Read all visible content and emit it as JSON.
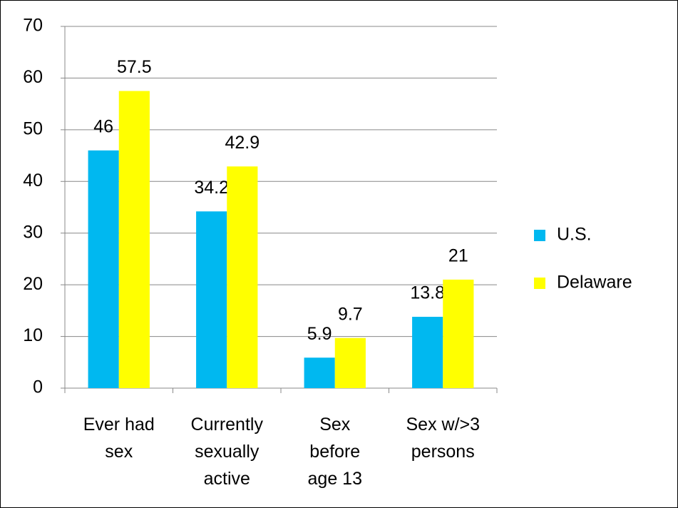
{
  "chart_data": {
    "type": "bar",
    "categories": [
      "Ever had\nsex",
      "Currently\nsexually\nactive",
      "Sex\nbefore\nage 13",
      "Sex w/>3\npersons"
    ],
    "series": [
      {
        "name": "U.S.",
        "color": "#00b8f0",
        "values": [
          46,
          34.2,
          5.9,
          13.8
        ]
      },
      {
        "name": "Delaware",
        "color": "#ffff00",
        "values": [
          57.5,
          42.9,
          9.7,
          21
        ]
      }
    ],
    "ylim": [
      0,
      70
    ],
    "yticks": [
      0,
      10,
      20,
      30,
      40,
      50,
      60,
      70
    ],
    "grid": true,
    "legend": "right"
  }
}
